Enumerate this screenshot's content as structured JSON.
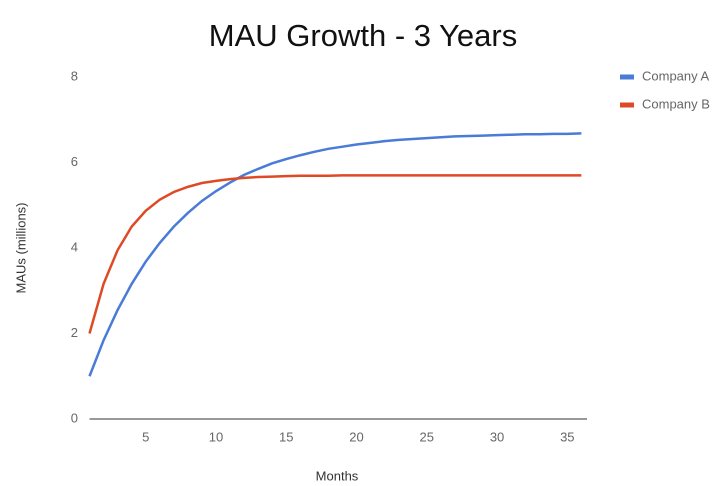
{
  "chart_data": {
    "type": "line",
    "title": "MAU Growth - 3 Years",
    "x_label": "Months",
    "y_label": "MAUs (millions)",
    "x": [
      1,
      2,
      3,
      4,
      5,
      6,
      7,
      8,
      9,
      10,
      11,
      12,
      13,
      14,
      15,
      16,
      17,
      18,
      19,
      20,
      21,
      22,
      23,
      24,
      25,
      26,
      27,
      28,
      29,
      30,
      31,
      32,
      33,
      34,
      35,
      36
    ],
    "series": [
      {
        "name": "Company A",
        "color": "#4a7bd6",
        "values": [
          1.0,
          1.84,
          2.55,
          3.16,
          3.68,
          4.12,
          4.5,
          4.82,
          5.1,
          5.33,
          5.53,
          5.71,
          5.85,
          5.98,
          6.08,
          6.17,
          6.25,
          6.32,
          6.37,
          6.42,
          6.46,
          6.5,
          6.53,
          6.55,
          6.57,
          6.59,
          6.61,
          6.62,
          6.63,
          6.64,
          6.65,
          6.66,
          6.66,
          6.67,
          6.67,
          6.68
        ]
      },
      {
        "name": "Company B",
        "color": "#de4a25",
        "values": [
          2.0,
          3.16,
          3.95,
          4.5,
          4.87,
          5.13,
          5.31,
          5.43,
          5.52,
          5.57,
          5.61,
          5.64,
          5.66,
          5.67,
          5.68,
          5.69,
          5.69,
          5.69,
          5.7,
          5.7,
          5.7,
          5.7,
          5.7,
          5.7,
          5.7,
          5.7,
          5.7,
          5.7,
          5.7,
          5.7,
          5.7,
          5.7,
          5.7,
          5.7,
          5.7,
          5.7
        ]
      }
    ],
    "xlim": [
      1,
      36.4
    ],
    "xticks": [
      5,
      10,
      15,
      20,
      25,
      30,
      35
    ],
    "ylim": [
      0,
      8
    ],
    "yticks": [
      0,
      2,
      4,
      6,
      8
    ],
    "grid": false,
    "legend": "right"
  }
}
